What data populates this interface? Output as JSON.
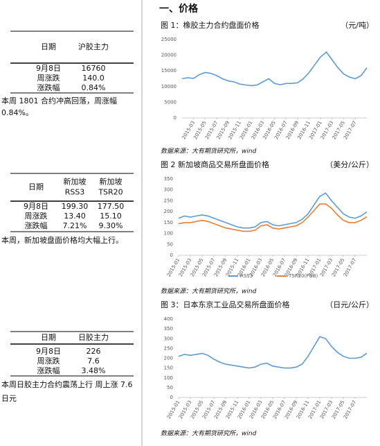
{
  "heading": "一、价格",
  "tables": [
    {
      "header": [
        [
          "日期"
        ],
        [
          "沪胶主力"
        ]
      ],
      "rows": [
        [
          "9月8日",
          "16760"
        ],
        [
          "周涨跌",
          "140.0"
        ],
        [
          "涨跌幅",
          "0.84%"
        ]
      ],
      "note_lines": [
        "本周 1801 合约冲高回落，周涨幅",
        "0.84%。"
      ]
    },
    {
      "header": [
        [
          "日期"
        ],
        [
          "新加坡",
          "RSS3"
        ],
        [
          "新加坡",
          "TSR20"
        ]
      ],
      "rows": [
        [
          "9月8日",
          "199.30",
          "177.50"
        ],
        [
          "周涨跌",
          "13.40",
          "15.10"
        ],
        [
          "涨跌幅",
          "7.21%",
          "9.30%"
        ]
      ],
      "note_lines": [
        "本周，新加坡盘面价格均大幅上行。"
      ]
    },
    {
      "header": [
        [
          "日期"
        ],
        [
          "日胶主力"
        ]
      ],
      "rows": [
        [
          "9月8日",
          "226"
        ],
        [
          "周涨跌",
          "7.6"
        ],
        [
          "涨跌幅",
          "3.48%"
        ]
      ],
      "note_lines": [
        "本周日胶主力合约震荡上行 周上涨 7.6",
        "日元"
      ]
    }
  ],
  "chart_data": [
    {
      "type": "line",
      "title": "图 1：橡胶主力合约盘面价格",
      "unit": "（元/吨）",
      "source": "数据来源：大有期货研究所，wind",
      "x": [
        "2015-01",
        "2015-02",
        "2015-03",
        "2015-04",
        "2015-05",
        "2015-06",
        "2015-07",
        "2015-08",
        "2015-09",
        "2015-10",
        "2015-11",
        "2015-12",
        "2016-01",
        "2016-02",
        "2016-03",
        "2016-04",
        "2016-05",
        "2016-06",
        "2016-07",
        "2016-08",
        "2016-09",
        "2016-10",
        "2016-11",
        "2016-12",
        "2017-01",
        "2017-02",
        "2017-03",
        "2017-04",
        "2017-05",
        "2017-06",
        "2017-07",
        "2017-08",
        "2017-09"
      ],
      "values": [
        12500,
        12800,
        12600,
        13800,
        14500,
        14200,
        13500,
        12500,
        11800,
        11500,
        10800,
        10500,
        10300,
        10500,
        11500,
        12500,
        11000,
        10600,
        11000,
        11000,
        11200,
        12500,
        14500,
        17000,
        19500,
        21000,
        18500,
        16000,
        14000,
        13000,
        12500,
        13500,
        16000
      ],
      "color": "#5b9bd5",
      "ylim": [
        0,
        25000
      ],
      "yticks": [
        0,
        5000,
        10000,
        15000,
        20000,
        25000
      ],
      "grid": false,
      "xticks": [
        "2015-03",
        "2015-05",
        "2015-07",
        "2015-09",
        "2015-11",
        "2016-01",
        "2016-03",
        "2016-05",
        "2016-07",
        "2016-09",
        "2016-11",
        "2017-01",
        "2017-03",
        "2017-05",
        "2017-07"
      ]
    },
    {
      "type": "line",
      "title": "图 2 新加坡商品交易所盘面价格",
      "unit": "（美分/公斤）",
      "source": "数据来源：大有期货研究所，wind",
      "x": [
        "2015-01",
        "2015-02",
        "2015-03",
        "2015-04",
        "2015-05",
        "2015-06",
        "2015-07",
        "2015-08",
        "2015-09",
        "2015-10",
        "2015-11",
        "2015-12",
        "2016-01",
        "2016-02",
        "2016-03",
        "2016-04",
        "2016-05",
        "2016-06",
        "2016-07",
        "2016-08",
        "2016-09",
        "2016-10",
        "2016-11",
        "2016-12",
        "2017-01",
        "2017-02",
        "2017-03",
        "2017-04",
        "2017-05",
        "2017-06",
        "2017-07",
        "2017-08",
        "2017-09"
      ],
      "series": [
        {
          "name": "RSS3",
          "color": "#5b9bd5",
          "values": [
            170,
            180,
            175,
            180,
            185,
            180,
            170,
            160,
            150,
            140,
            130,
            125,
            125,
            130,
            150,
            155,
            140,
            135,
            140,
            145,
            150,
            165,
            190,
            230,
            270,
            285,
            250,
            220,
            190,
            175,
            170,
            180,
            199
          ]
        },
        {
          "name": "TSR20(FOB)",
          "color": "#ed7d31",
          "values": [
            145,
            150,
            150,
            155,
            160,
            155,
            145,
            135,
            125,
            120,
            115,
            110,
            110,
            115,
            135,
            140,
            125,
            120,
            125,
            130,
            135,
            150,
            175,
            205,
            235,
            235,
            215,
            185,
            160,
            150,
            150,
            160,
            177
          ]
        }
      ],
      "ylim": [
        0,
        350
      ],
      "yticks": [
        0,
        50,
        100,
        150,
        200,
        250,
        300,
        350
      ],
      "grid": false,
      "xticks": [
        "2015-01",
        "2015-03",
        "2015-05",
        "2015-07",
        "2015-09",
        "2015-11",
        "2016-01",
        "2016-03",
        "2016-05",
        "2016-07",
        "2016-09",
        "2016-11",
        "2017-01",
        "2017-03",
        "2017-05",
        "2017-07"
      ]
    },
    {
      "type": "line",
      "title": "图 3：日本东京工业品交易所盘面价格",
      "unit": "（日元/公斤）",
      "source": "数据来源：大有期货研究所，wind",
      "x": [
        "2015-01",
        "2015-02",
        "2015-03",
        "2015-04",
        "2015-05",
        "2015-06",
        "2015-07",
        "2015-08",
        "2015-09",
        "2015-10",
        "2015-11",
        "2015-12",
        "2016-01",
        "2016-02",
        "2016-03",
        "2016-04",
        "2016-05",
        "2016-06",
        "2016-07",
        "2016-08",
        "2016-09",
        "2016-10",
        "2016-11",
        "2016-12",
        "2017-01",
        "2017-02",
        "2017-03",
        "2017-04",
        "2017-05",
        "2017-06",
        "2017-07",
        "2017-08",
        "2017-09"
      ],
      "values": [
        210,
        220,
        215,
        220,
        225,
        215,
        195,
        180,
        170,
        165,
        160,
        155,
        150,
        155,
        170,
        175,
        160,
        155,
        150,
        150,
        155,
        170,
        210,
        260,
        310,
        300,
        260,
        230,
        210,
        200,
        200,
        205,
        226
      ],
      "color": "#5b9bd5",
      "ylim": [
        0,
        400
      ],
      "yticks": [
        0,
        50,
        100,
        150,
        200,
        250,
        300,
        350,
        400
      ],
      "grid": false,
      "xticks": [
        "2015-01",
        "2015-03",
        "2015-05",
        "2015-07",
        "2015-09",
        "2015-11",
        "2016-01",
        "2016-03",
        "2016-05",
        "2016-07",
        "2016-09",
        "2016-11",
        "2017-01",
        "2017-03",
        "2017-05",
        "2017-07"
      ]
    }
  ]
}
